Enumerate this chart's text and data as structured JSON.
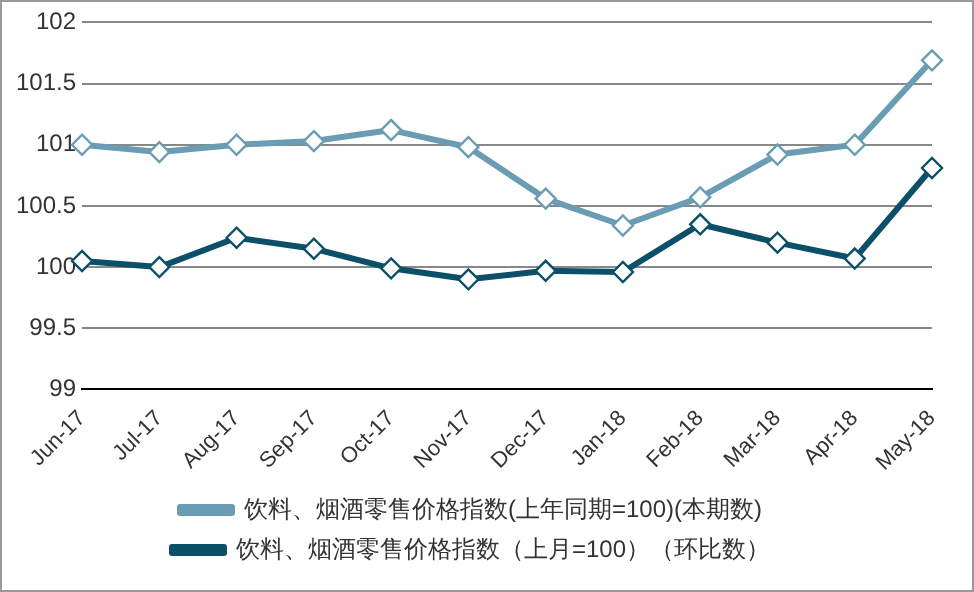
{
  "chart_data": {
    "type": "line",
    "categories": [
      "Jun-17",
      "Jul-17",
      "Aug-17",
      "Sep-17",
      "Oct-17",
      "Nov-17",
      "Dec-17",
      "Jan-18",
      "Feb-18",
      "Mar-18",
      "Apr-18",
      "May-18"
    ],
    "series": [
      {
        "name": "饮料、烟酒零售价格指数(上年同期=100)(本期数)",
        "color": "#6a9db4",
        "values": [
          101.0,
          100.94,
          101.0,
          101.03,
          101.12,
          100.98,
          100.56,
          100.34,
          100.57,
          100.92,
          101.0,
          101.69
        ]
      },
      {
        "name": "饮料、烟酒零售价格指数（上月=100）（环比数）",
        "color": "#0b5068",
        "values": [
          100.05,
          100.0,
          100.24,
          100.15,
          99.99,
          99.9,
          99.97,
          99.96,
          100.35,
          100.2,
          100.07,
          100.81
        ]
      }
    ],
    "ylim": [
      99,
      102
    ],
    "yticks": [
      99,
      99.5,
      100,
      100.5,
      101,
      101.5,
      102
    ],
    "grid": "y",
    "legend": "bottom",
    "marker": "diamond",
    "line_style": "solid"
  }
}
